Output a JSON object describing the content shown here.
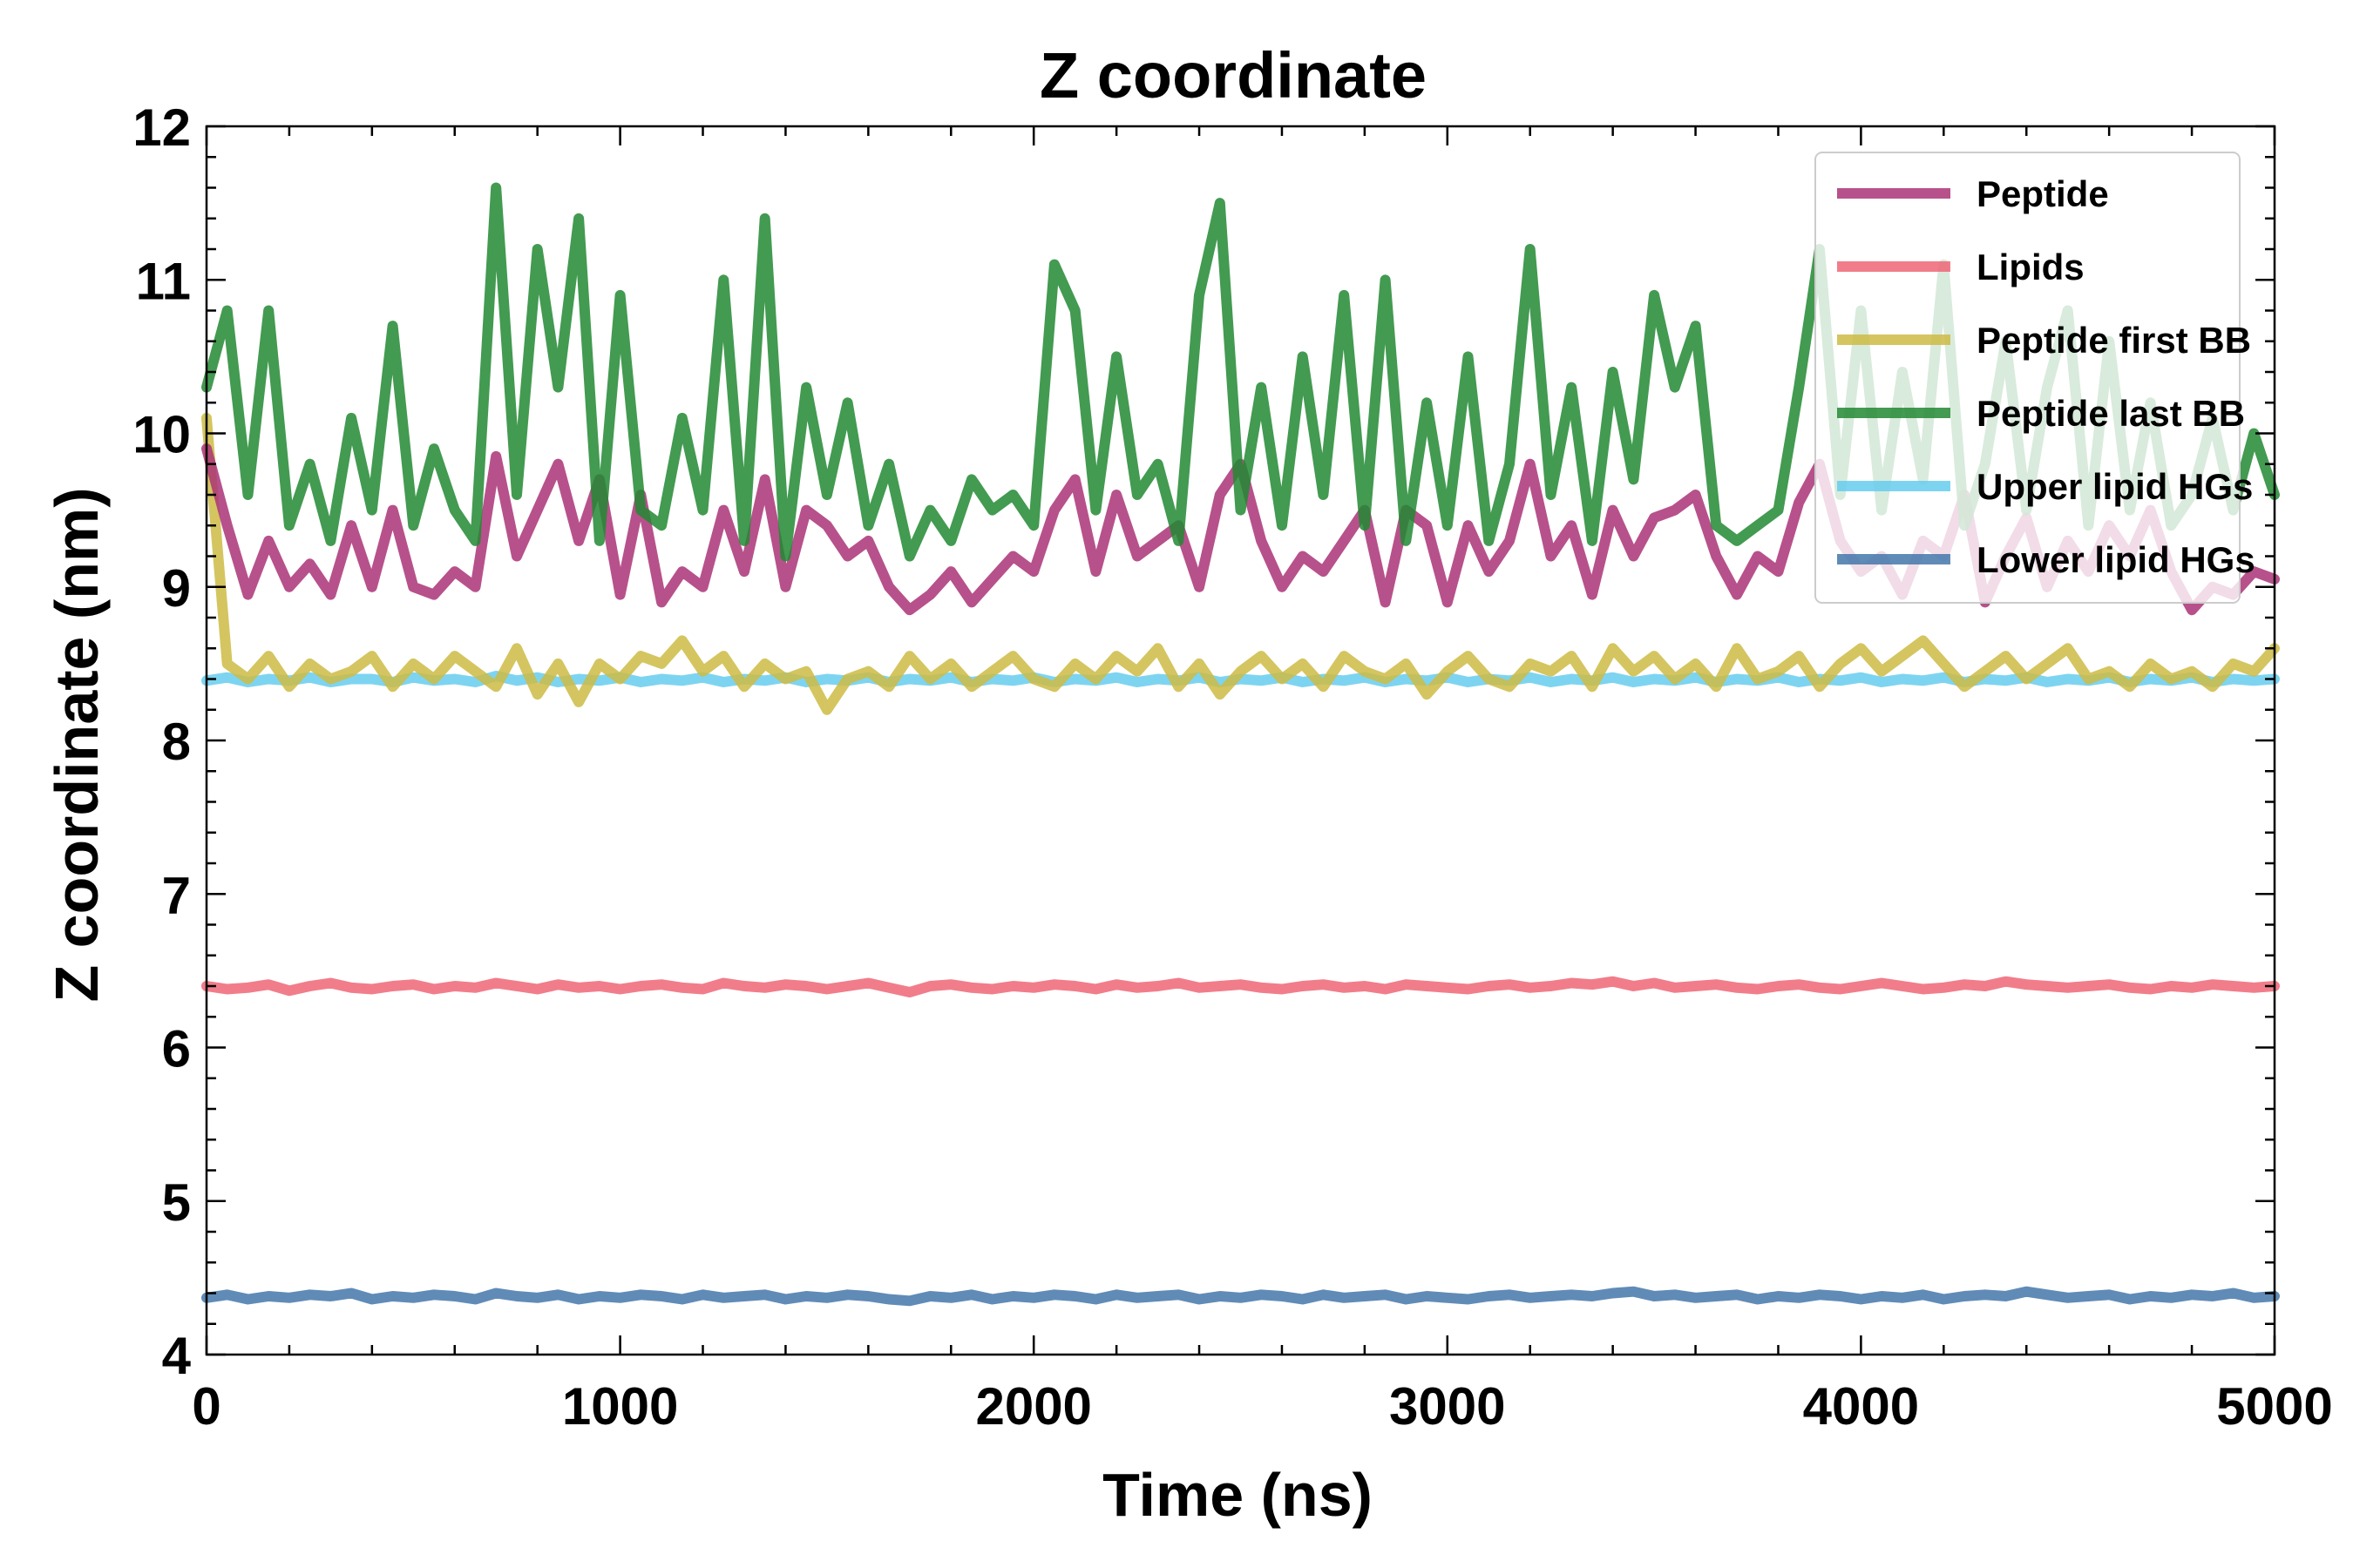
{
  "chart_data": {
    "type": "line",
    "title": "Z coordinate",
    "xlabel": "Time (ns)",
    "ylabel": "Z coordinate (nm)",
    "xlim": [
      0,
      5000
    ],
    "ylim": [
      4,
      12
    ],
    "xticks": [
      0,
      1000,
      2000,
      3000,
      4000,
      5000
    ],
    "yticks": [
      4,
      5,
      6,
      7,
      8,
      9,
      10,
      11,
      12
    ],
    "xtick_labels": [
      "0",
      "1000",
      "2000",
      "3000",
      "4000",
      "5000"
    ],
    "ytick_labels": [
      "4",
      "5",
      "6",
      "7",
      "8",
      "9",
      "10",
      "11",
      "12"
    ],
    "grid": false,
    "legend_position": "top-right",
    "x": [
      0,
      50,
      100,
      150,
      200,
      250,
      300,
      350,
      400,
      450,
      500,
      550,
      600,
      650,
      700,
      750,
      800,
      850,
      900,
      950,
      1000,
      1050,
      1100,
      1150,
      1200,
      1250,
      1300,
      1350,
      1400,
      1450,
      1500,
      1550,
      1600,
      1650,
      1700,
      1750,
      1800,
      1850,
      1900,
      1950,
      2000,
      2050,
      2100,
      2150,
      2200,
      2250,
      2300,
      2350,
      2400,
      2450,
      2500,
      2550,
      2600,
      2650,
      2700,
      2750,
      2800,
      2850,
      2900,
      2950,
      3000,
      3050,
      3100,
      3150,
      3200,
      3250,
      3300,
      3350,
      3400,
      3450,
      3500,
      3550,
      3600,
      3650,
      3700,
      3750,
      3800,
      3850,
      3900,
      3950,
      4000,
      4050,
      4100,
      4150,
      4200,
      4250,
      4300,
      4350,
      4400,
      4450,
      4500,
      4550,
      4600,
      4650,
      4700,
      4750,
      4800,
      4850,
      4900,
      4950,
      5000
    ],
    "series": [
      {
        "name": "Peptide",
        "color": "#aa3377",
        "values": [
          9.9,
          9.4,
          8.95,
          9.3,
          9.0,
          9.15,
          8.95,
          9.4,
          9.0,
          9.5,
          9.0,
          8.95,
          9.1,
          9.0,
          9.85,
          9.2,
          9.5,
          9.8,
          9.3,
          9.7,
          8.95,
          9.6,
          8.9,
          9.1,
          9.0,
          9.5,
          9.1,
          9.7,
          9.0,
          9.5,
          9.4,
          9.2,
          9.3,
          9.0,
          8.85,
          8.95,
          9.1,
          8.9,
          9.05,
          9.2,
          9.1,
          9.5,
          9.7,
          9.1,
          9.6,
          9.2,
          9.3,
          9.4,
          9.0,
          9.6,
          9.8,
          9.3,
          9.0,
          9.2,
          9.1,
          9.3,
          9.5,
          8.9,
          9.5,
          9.4,
          8.9,
          9.4,
          9.1,
          9.3,
          9.8,
          9.2,
          9.4,
          8.95,
          9.5,
          9.2,
          9.45,
          9.5,
          9.6,
          9.2,
          8.95,
          9.2,
          9.1,
          9.55,
          9.8,
          9.3,
          9.1,
          9.2,
          8.95,
          9.3,
          9.2,
          9.6,
          8.9,
          9.2,
          9.45,
          9.0,
          9.3,
          9.1,
          9.4,
          9.2,
          9.5,
          9.1,
          8.85,
          9.0,
          8.95,
          9.1,
          9.05
        ]
      },
      {
        "name": "Lipids",
        "color": "#ee6677",
        "values": [
          6.4,
          6.38,
          6.39,
          6.41,
          6.37,
          6.4,
          6.42,
          6.39,
          6.38,
          6.4,
          6.41,
          6.38,
          6.4,
          6.39,
          6.42,
          6.4,
          6.38,
          6.41,
          6.39,
          6.4,
          6.38,
          6.4,
          6.41,
          6.39,
          6.38,
          6.42,
          6.4,
          6.39,
          6.41,
          6.4,
          6.38,
          6.4,
          6.42,
          6.39,
          6.36,
          6.4,
          6.41,
          6.39,
          6.38,
          6.4,
          6.39,
          6.41,
          6.4,
          6.38,
          6.41,
          6.39,
          6.4,
          6.42,
          6.39,
          6.4,
          6.41,
          6.39,
          6.38,
          6.4,
          6.41,
          6.39,
          6.4,
          6.38,
          6.41,
          6.4,
          6.39,
          6.38,
          6.4,
          6.41,
          6.39,
          6.4,
          6.42,
          6.41,
          6.43,
          6.4,
          6.42,
          6.39,
          6.4,
          6.41,
          6.39,
          6.38,
          6.4,
          6.41,
          6.39,
          6.38,
          6.4,
          6.42,
          6.4,
          6.38,
          6.39,
          6.41,
          6.4,
          6.43,
          6.41,
          6.4,
          6.39,
          6.4,
          6.41,
          6.39,
          6.38,
          6.4,
          6.39,
          6.41,
          6.4,
          6.39,
          6.4
        ]
      },
      {
        "name": "Peptide first BB",
        "color": "#ccbb44",
        "values": [
          10.1,
          8.5,
          8.4,
          8.55,
          8.35,
          8.5,
          8.4,
          8.45,
          8.55,
          8.35,
          8.5,
          8.4,
          8.55,
          8.45,
          8.35,
          8.6,
          8.3,
          8.5,
          8.25,
          8.5,
          8.4,
          8.55,
          8.5,
          8.65,
          8.45,
          8.55,
          8.35,
          8.5,
          8.4,
          8.45,
          8.2,
          8.4,
          8.45,
          8.35,
          8.55,
          8.4,
          8.5,
          8.35,
          8.45,
          8.55,
          8.4,
          8.35,
          8.5,
          8.4,
          8.55,
          8.45,
          8.6,
          8.35,
          8.5,
          8.3,
          8.45,
          8.55,
          8.4,
          8.5,
          8.35,
          8.55,
          8.45,
          8.4,
          8.5,
          8.3,
          8.45,
          8.55,
          8.4,
          8.35,
          8.5,
          8.45,
          8.55,
          8.35,
          8.6,
          8.45,
          8.55,
          8.4,
          8.5,
          8.35,
          8.6,
          8.4,
          8.45,
          8.55,
          8.35,
          8.5,
          8.6,
          8.45,
          8.55,
          8.65,
          8.5,
          8.35,
          8.45,
          8.55,
          8.4,
          8.5,
          8.6,
          8.4,
          8.45,
          8.35,
          8.5,
          8.4,
          8.45,
          8.35,
          8.5,
          8.45,
          8.6
        ]
      },
      {
        "name": "Peptide last BB",
        "color": "#228833",
        "values": [
          10.3,
          10.8,
          9.6,
          10.8,
          9.4,
          9.8,
          9.3,
          10.1,
          9.5,
          10.7,
          9.4,
          9.9,
          9.5,
          9.3,
          11.6,
          9.6,
          11.2,
          10.3,
          11.4,
          9.3,
          10.9,
          9.5,
          9.4,
          10.1,
          9.5,
          11.0,
          9.3,
          11.4,
          9.2,
          10.3,
          9.6,
          10.2,
          9.4,
          9.8,
          9.2,
          9.5,
          9.3,
          9.7,
          9.5,
          9.6,
          9.4,
          11.1,
          10.8,
          9.5,
          10.5,
          9.6,
          9.8,
          9.3,
          10.9,
          11.5,
          9.5,
          10.3,
          9.4,
          10.5,
          9.6,
          10.9,
          9.4,
          11.0,
          9.3,
          10.2,
          9.4,
          10.5,
          9.3,
          9.8,
          11.2,
          9.6,
          10.3,
          9.3,
          10.4,
          9.7,
          10.9,
          10.3,
          10.7,
          9.4,
          9.3,
          9.4,
          9.5,
          10.3,
          11.2,
          9.6,
          10.8,
          9.5,
          10.4,
          9.7,
          11.1,
          9.4,
          9.8,
          10.6,
          9.5,
          10.3,
          10.8,
          9.4,
          10.6,
          9.5,
          10.2,
          9.4,
          9.6,
          10.1,
          9.5,
          10.0,
          9.6
        ]
      },
      {
        "name": "Upper lipid HGs",
        "color": "#66ccee",
        "values": [
          8.39,
          8.41,
          8.38,
          8.4,
          8.39,
          8.41,
          8.38,
          8.4,
          8.4,
          8.38,
          8.41,
          8.39,
          8.4,
          8.38,
          8.42,
          8.39,
          8.41,
          8.38,
          8.4,
          8.39,
          8.41,
          8.38,
          8.4,
          8.39,
          8.41,
          8.38,
          8.4,
          8.39,
          8.41,
          8.38,
          8.4,
          8.39,
          8.41,
          8.38,
          8.4,
          8.39,
          8.41,
          8.38,
          8.4,
          8.39,
          8.41,
          8.38,
          8.4,
          8.39,
          8.41,
          8.38,
          8.4,
          8.39,
          8.41,
          8.38,
          8.4,
          8.39,
          8.41,
          8.38,
          8.4,
          8.39,
          8.41,
          8.38,
          8.4,
          8.39,
          8.41,
          8.38,
          8.4,
          8.39,
          8.41,
          8.38,
          8.4,
          8.39,
          8.41,
          8.38,
          8.4,
          8.39,
          8.41,
          8.38,
          8.4,
          8.39,
          8.41,
          8.38,
          8.4,
          8.39,
          8.41,
          8.38,
          8.4,
          8.39,
          8.41,
          8.38,
          8.4,
          8.39,
          8.41,
          8.38,
          8.4,
          8.39,
          8.41,
          8.38,
          8.4,
          8.39,
          8.41,
          8.38,
          8.4,
          8.39,
          8.4
        ]
      },
      {
        "name": "Lower lipid HGs",
        "color": "#4477aa",
        "values": [
          4.37,
          4.39,
          4.36,
          4.38,
          4.37,
          4.39,
          4.38,
          4.4,
          4.36,
          4.38,
          4.37,
          4.39,
          4.38,
          4.36,
          4.4,
          4.38,
          4.37,
          4.39,
          4.36,
          4.38,
          4.37,
          4.39,
          4.38,
          4.36,
          4.39,
          4.37,
          4.38,
          4.39,
          4.36,
          4.38,
          4.37,
          4.39,
          4.38,
          4.36,
          4.35,
          4.38,
          4.37,
          4.39,
          4.36,
          4.38,
          4.37,
          4.39,
          4.38,
          4.36,
          4.39,
          4.37,
          4.38,
          4.39,
          4.36,
          4.38,
          4.37,
          4.39,
          4.38,
          4.36,
          4.39,
          4.37,
          4.38,
          4.39,
          4.36,
          4.38,
          4.37,
          4.36,
          4.38,
          4.39,
          4.37,
          4.38,
          4.39,
          4.38,
          4.4,
          4.41,
          4.38,
          4.39,
          4.37,
          4.38,
          4.39,
          4.36,
          4.38,
          4.37,
          4.39,
          4.38,
          4.36,
          4.38,
          4.37,
          4.39,
          4.36,
          4.38,
          4.39,
          4.38,
          4.41,
          4.39,
          4.37,
          4.38,
          4.39,
          4.36,
          4.38,
          4.37,
          4.39,
          4.38,
          4.4,
          4.37,
          4.38
        ]
      }
    ]
  }
}
